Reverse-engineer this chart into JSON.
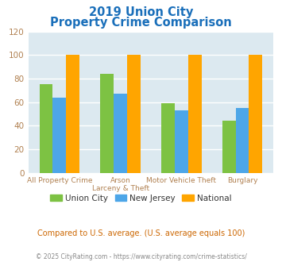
{
  "title_line1": "2019 Union City",
  "title_line2": "Property Crime Comparison",
  "cat_labels_line1": [
    "All Property Crime",
    "Arson",
    "Motor Vehicle Theft",
    "Burglary"
  ],
  "cat_labels_line2": [
    "",
    "Larceny & Theft",
    "",
    ""
  ],
  "union_city": [
    75,
    84,
    59,
    44
  ],
  "new_jersey": [
    64,
    67,
    53,
    55
  ],
  "national": [
    100,
    100,
    100,
    100
  ],
  "colors": {
    "union_city": "#7dc243",
    "new_jersey": "#4da6e8",
    "national": "#ffa500"
  },
  "ylim": [
    0,
    120
  ],
  "yticks": [
    0,
    20,
    40,
    60,
    80,
    100,
    120
  ],
  "title_color": "#1a6fba",
  "axis_bg_color": "#dce9f0",
  "fig_bg_color": "#ffffff",
  "grid_color": "#ffffff",
  "tick_color": "#b08050",
  "subtitle_text": "Compared to U.S. average. (U.S. average equals 100)",
  "subtitle_color": "#cc6600",
  "footer_text": "© 2025 CityRating.com - https://www.cityrating.com/crime-statistics/",
  "footer_color": "#888888",
  "legend_labels": [
    "Union City",
    "New Jersey",
    "National"
  ],
  "legend_text_color": "#333333"
}
